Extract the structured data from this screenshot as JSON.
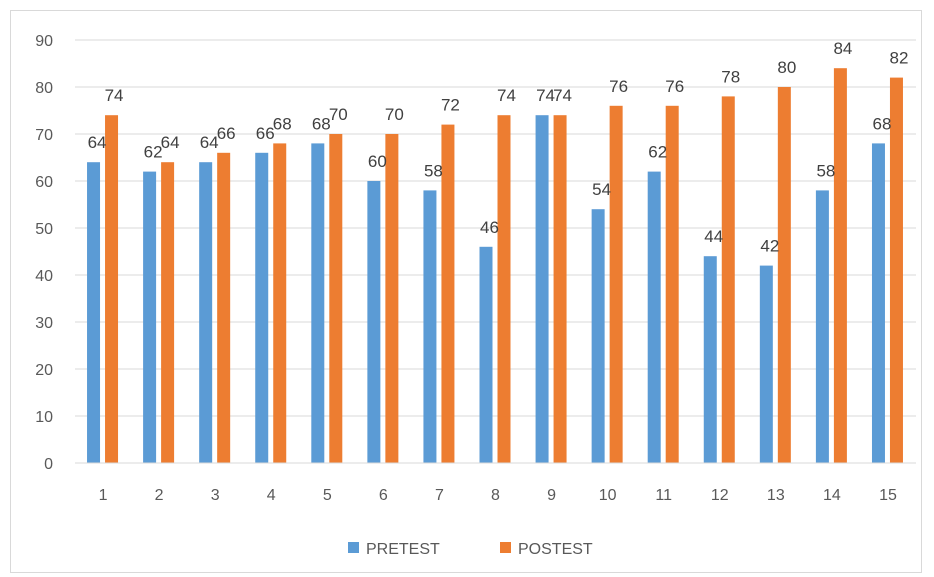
{
  "chart_data": {
    "type": "bar",
    "categories": [
      "1",
      "2",
      "3",
      "4",
      "5",
      "6",
      "7",
      "8",
      "9",
      "10",
      "11",
      "12",
      "13",
      "14",
      "15"
    ],
    "series": [
      {
        "name": "PRETEST",
        "color": "#5b9bd5",
        "values": [
          64,
          62,
          64,
          66,
          68,
          60,
          58,
          46,
          74,
          54,
          62,
          44,
          42,
          58,
          68
        ]
      },
      {
        "name": "POSTEST",
        "color": "#ed7d31",
        "values": [
          74,
          64,
          66,
          68,
          70,
          70,
          72,
          74,
          74,
          76,
          76,
          78,
          80,
          84,
          82
        ]
      }
    ],
    "ylim": [
      0,
      90
    ],
    "yticks": [
      "0",
      "10",
      "20",
      "30",
      "40",
      "50",
      "60",
      "70",
      "80",
      "90"
    ],
    "grid": true,
    "legend_position": "bottom",
    "data_labels": true
  }
}
